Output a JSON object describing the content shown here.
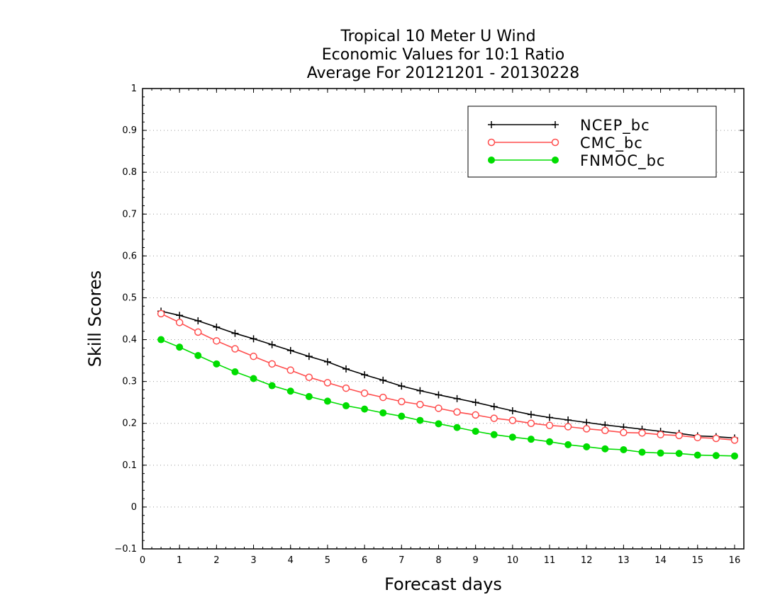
{
  "chart_data": {
    "type": "line",
    "title": [
      "Tropical 10 Meter U Wind",
      "Economic Values for 10:1 Ratio",
      "Average For 20121201 - 20130228"
    ],
    "xlabel": "Forecast days",
    "ylabel": "Skill Scores",
    "xlim": [
      0,
      16.25
    ],
    "ylim": [
      -0.1,
      1
    ],
    "xticks": [
      0,
      1,
      2,
      3,
      4,
      5,
      6,
      7,
      8,
      9,
      10,
      11,
      12,
      13,
      14,
      15,
      16
    ],
    "yticks": [
      -0.1,
      0,
      0.1,
      0.2,
      0.3,
      0.4,
      0.5,
      0.6,
      0.7,
      0.8,
      0.9,
      1
    ],
    "ytick_labels": [
      "−0.1",
      "0",
      "0.1",
      "0.2",
      "0.3",
      "0.4",
      "0.5",
      "0.6",
      "0.7",
      "0.8",
      "0.9",
      "1"
    ],
    "grid": "dotted horizontal",
    "legend_position": "top-right",
    "x": [
      0.5,
      1,
      1.5,
      2,
      2.5,
      3,
      3.5,
      4,
      4.5,
      5,
      5.5,
      6,
      6.5,
      7,
      7.5,
      8,
      8.5,
      9,
      9.5,
      10,
      10.5,
      11,
      11.5,
      12,
      12.5,
      13,
      13.5,
      14,
      14.5,
      15,
      15.5,
      16
    ],
    "series": [
      {
        "name": "NCEP_bc",
        "color": "#000000",
        "marker": "plus",
        "values": [
          0.468,
          0.458,
          0.445,
          0.43,
          0.415,
          0.402,
          0.388,
          0.374,
          0.36,
          0.347,
          0.33,
          0.316,
          0.303,
          0.289,
          0.278,
          0.268,
          0.259,
          0.25,
          0.24,
          0.23,
          0.221,
          0.214,
          0.208,
          0.202,
          0.196,
          0.191,
          0.186,
          0.181,
          0.176,
          0.17,
          0.168,
          0.165
        ]
      },
      {
        "name": "CMC_bc",
        "color": "#ff4d4d",
        "marker": "open-circle",
        "values": [
          0.462,
          0.441,
          0.418,
          0.397,
          0.378,
          0.36,
          0.342,
          0.327,
          0.31,
          0.297,
          0.284,
          0.272,
          0.262,
          0.252,
          0.245,
          0.236,
          0.227,
          0.22,
          0.212,
          0.207,
          0.2,
          0.195,
          0.192,
          0.187,
          0.183,
          0.178,
          0.177,
          0.173,
          0.171,
          0.166,
          0.164,
          0.16
        ]
      },
      {
        "name": "FNMOC_bc",
        "color": "#00dd00",
        "marker": "filled-circle",
        "values": [
          0.4,
          0.382,
          0.362,
          0.342,
          0.323,
          0.307,
          0.29,
          0.277,
          0.264,
          0.253,
          0.242,
          0.234,
          0.225,
          0.217,
          0.207,
          0.199,
          0.19,
          0.181,
          0.173,
          0.167,
          0.162,
          0.156,
          0.149,
          0.144,
          0.139,
          0.137,
          0.131,
          0.129,
          0.128,
          0.124,
          0.123,
          0.122
        ]
      }
    ]
  }
}
